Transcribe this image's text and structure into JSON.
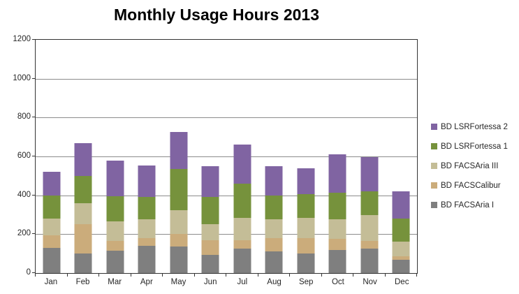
{
  "chart_data": {
    "type": "bar",
    "stacked": true,
    "title": "Monthly Usage Hours 2013",
    "categories": [
      "Jan",
      "Feb",
      "Mar",
      "Apr",
      "May",
      "Jun",
      "Jul",
      "Aug",
      "Sep",
      "Oct",
      "Nov",
      "Dec"
    ],
    "series": [
      {
        "name": "BD FACSAria I",
        "color": "#7F7F7F",
        "values": [
          130,
          100,
          115,
          140,
          135,
          95,
          125,
          110,
          100,
          120,
          125,
          70
        ]
      },
      {
        "name": "BD FACSCalibur",
        "color": "#CBAC7B",
        "values": [
          65,
          150,
          50,
          40,
          65,
          75,
          45,
          70,
          80,
          55,
          40,
          15
        ]
      },
      {
        "name": "BD FACSAria III",
        "color": "#C4BD97",
        "values": [
          85,
          110,
          100,
          95,
          125,
          80,
          115,
          95,
          105,
          100,
          135,
          75
        ]
      },
      {
        "name": "BD LSRFortessa 1",
        "color": "#76923C",
        "values": [
          120,
          140,
          130,
          115,
          210,
          140,
          175,
          125,
          120,
          140,
          120,
          120
        ]
      },
      {
        "name": "BD LSRFortessa 2",
        "color": "#8064A2",
        "values": [
          120,
          170,
          185,
          165,
          190,
          160,
          200,
          150,
          135,
          195,
          175,
          140
        ]
      }
    ],
    "legend_order_top_to_bottom": [
      "BD LSRFortessa 2",
      "BD LSRFortessa 1",
      "BD FACSAria III",
      "BD FACSCalibur",
      "BD FACSAria I"
    ],
    "legend_position": "right",
    "grid": "horizontal",
    "ylim": [
      0,
      1200
    ],
    "ytick_step": 200,
    "yticks": [
      0,
      200,
      400,
      600,
      800,
      1000,
      1200
    ]
  },
  "style_colors": {
    "plot_border": "#333333",
    "gridline": "#8C8C8C",
    "tick": "#333333",
    "axis_text": "#262626",
    "title_text": "#000000",
    "background": "#FFFFFF"
  }
}
